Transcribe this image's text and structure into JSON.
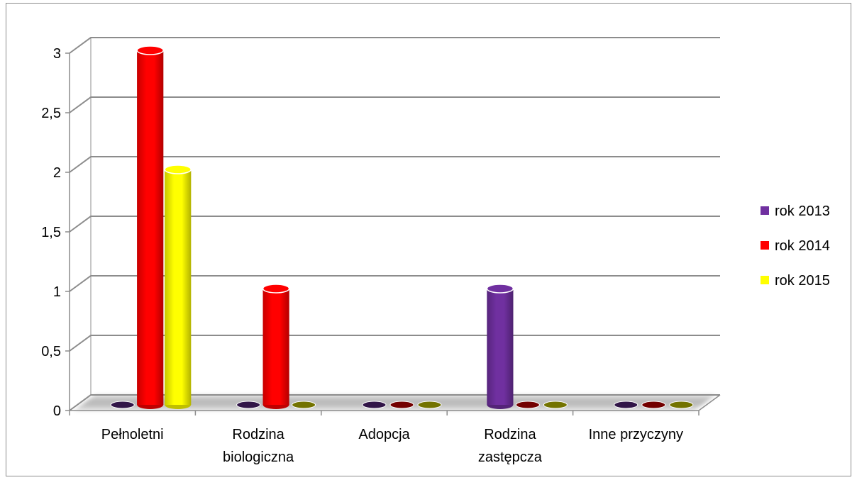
{
  "chart_data": {
    "type": "bar",
    "title": "",
    "xlabel": "",
    "ylabel": "",
    "ylim": [
      0,
      3
    ],
    "yticks": [
      "0",
      "0,5",
      "1",
      "1,5",
      "2",
      "2,5",
      "3"
    ],
    "ytick_values": [
      0,
      0.5,
      1,
      1.5,
      2,
      2.5,
      3
    ],
    "categories": [
      [
        "Pełnoletni"
      ],
      [
        "Rodzina",
        "biologiczna"
      ],
      [
        "Adopcja"
      ],
      [
        "Rodzina",
        "zastępcza"
      ],
      [
        "Inne przyczyny"
      ]
    ],
    "series": [
      {
        "name": "rok 2013",
        "color": "#7030A0",
        "values": [
          0,
          0,
          0,
          1,
          0
        ]
      },
      {
        "name": "rok 2014",
        "color": "#FF0000",
        "values": [
          3,
          1,
          0,
          0,
          0
        ]
      },
      {
        "name": "rok 2015",
        "color": "#FFFF00",
        "values": [
          2,
          0,
          0,
          0,
          0
        ]
      }
    ],
    "grid": true,
    "legend_position": "right",
    "style": "3d-cylinder"
  }
}
